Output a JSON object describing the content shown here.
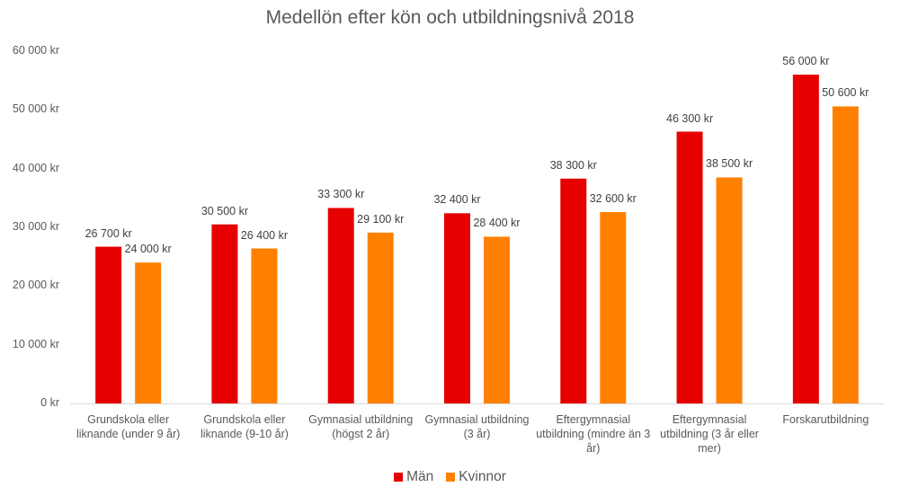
{
  "chart_data": {
    "type": "bar",
    "title": "Medellön efter kön och utbildningsnivå 2018",
    "categories": [
      "Grundskola eller liknande (under 9 år)",
      "Grundskola eller liknande (9-10 år)",
      "Gymnasial utbildning (högst 2 år)",
      "Gymnasial utbildning (3 år)",
      "Eftergymnasial utbildning (mindre än 3 år)",
      "Eftergymnasial utbildning (3 år eller mer)",
      "Forskarutbildning"
    ],
    "series": [
      {
        "name": "Män",
        "color": "#e60000",
        "values": [
          26700,
          30500,
          33300,
          32400,
          38300,
          46300,
          56000
        ],
        "labels": [
          "26 700 kr",
          "30 500 kr",
          "33 300 kr",
          "32 400 kr",
          "38 300 kr",
          "46 300 kr",
          "56 000 kr"
        ]
      },
      {
        "name": "Kvinnor",
        "color": "#ff8000",
        "values": [
          24000,
          26400,
          29100,
          28400,
          32600,
          38500,
          50600
        ],
        "labels": [
          "24 000 kr",
          "26 400 kr",
          "29 100 kr",
          "28 400 kr",
          "32 600 kr",
          "38 500 kr",
          "50 600 kr"
        ]
      }
    ],
    "ylim": [
      0,
      60000
    ],
    "yticks": [
      0,
      10000,
      20000,
      30000,
      40000,
      50000,
      60000
    ],
    "ytick_labels": [
      "0 kr",
      "10 000 kr",
      "20 000 kr",
      "30 000 kr",
      "40 000 kr",
      "50 000 kr",
      "60 000 kr"
    ],
    "grid": false,
    "legend": "bottom"
  }
}
